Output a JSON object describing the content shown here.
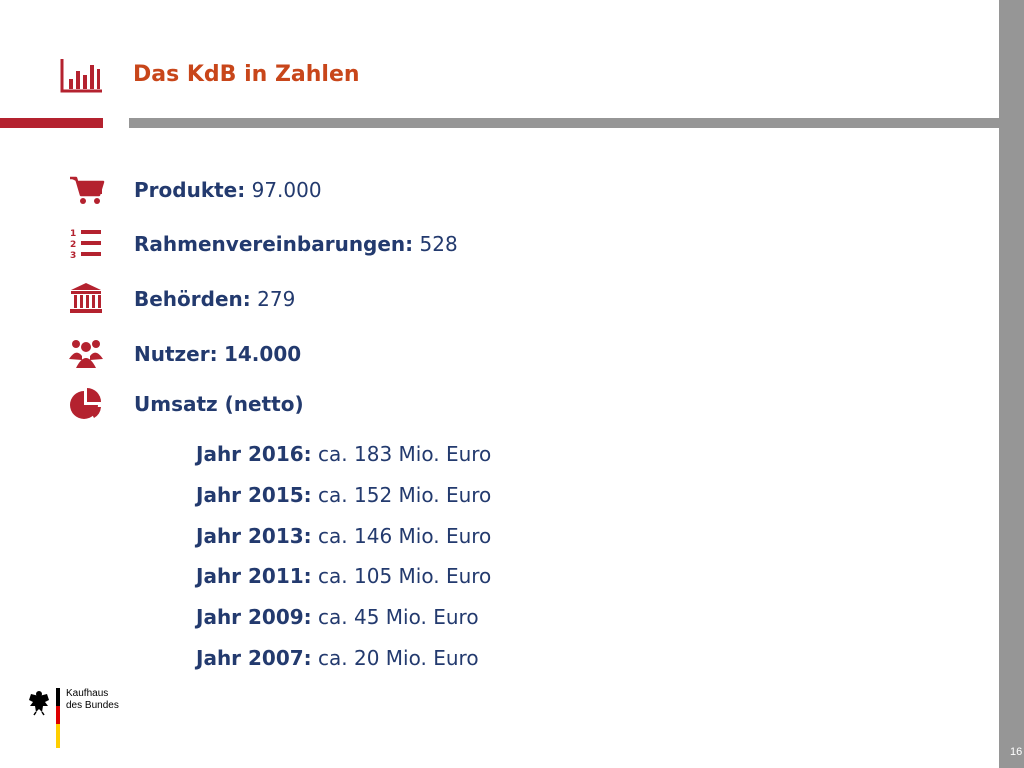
{
  "header": {
    "title": "Das KdB in Zahlen",
    "icon": "bar-chart-icon"
  },
  "stats": [
    {
      "label": "Produkte:",
      "value": "97.000",
      "icon": "shopping-cart-icon"
    },
    {
      "label": "Rahmenvereinbarungen:",
      "value": "528",
      "icon": "numbered-list-icon"
    },
    {
      "label": "Behörden:",
      "value": "279",
      "icon": "institution-icon"
    },
    {
      "label": "Nutzer:",
      "value": "14.000",
      "icon": "users-icon"
    },
    {
      "label": "Umsatz (netto)",
      "value": "",
      "icon": "pie-chart-icon"
    }
  ],
  "revenue": [
    {
      "label": "Jahr 2016:",
      "value": "ca. 183 Mio. Euro"
    },
    {
      "label": "Jahr 2015:",
      "value": "ca. 152 Mio. Euro"
    },
    {
      "label": "Jahr 2013:",
      "value": "ca. 146 Mio. Euro"
    },
    {
      "label": "Jahr 2011:",
      "value": "ca. 105 Mio. Euro"
    },
    {
      "label": "Jahr 2009:",
      "value": "ca. 45 Mio. Euro"
    },
    {
      "label": "Jahr 2007:",
      "value": "ca. 20 Mio. Euro"
    }
  ],
  "logo": {
    "line1": "Kaufhaus",
    "line2": "des Bundes",
    "emblem": "federal-eagle-icon"
  },
  "footer": {
    "page_number": "16"
  },
  "colors": {
    "accent_red": "#b4222f",
    "title_orange": "#c8461a",
    "text_navy": "#233a6e",
    "bar_gray": "#969696"
  }
}
